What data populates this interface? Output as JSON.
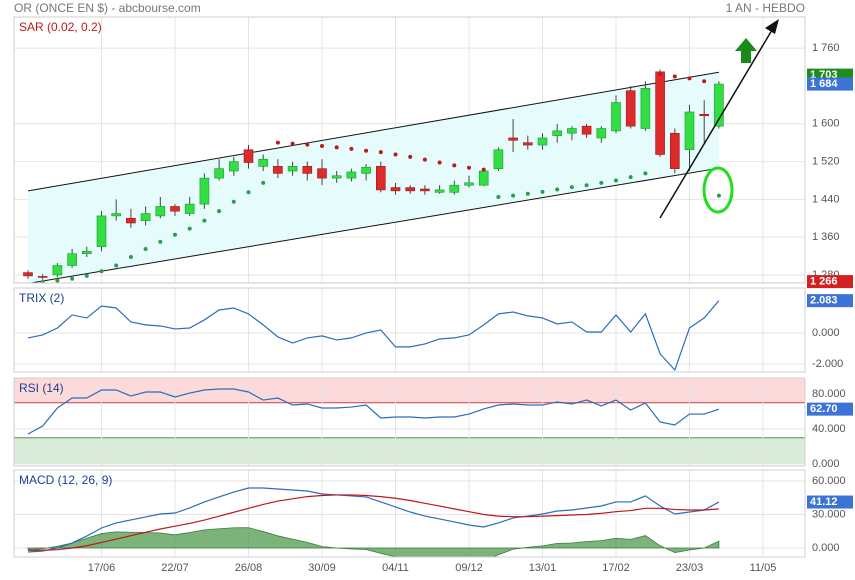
{
  "header": {
    "title": "OR (ONCE EN $) - abcbourse.com",
    "period": "1 AN - HEBDO"
  },
  "chart_data": [
    {
      "type": "candlestick",
      "label": "SAR (0.02, 0.2)",
      "label_color": "#c0171b",
      "categories": [
        null,
        null,
        null,
        null,
        null,
        "17/06",
        null,
        null,
        null,
        null,
        "22/07",
        null,
        null,
        null,
        null,
        "26/08",
        null,
        null,
        null,
        null,
        "30/09",
        null,
        null,
        null,
        null,
        "04/11",
        null,
        null,
        null,
        null,
        "09/12",
        null,
        null,
        null,
        null,
        "13/01",
        null,
        null,
        null,
        null,
        "17/02",
        null,
        null,
        null,
        null,
        "23/03",
        null,
        null,
        null,
        null,
        "11/05",
        null
      ],
      "open": [
        1285,
        1277,
        1280,
        1300,
        1325,
        1340,
        1405,
        1400,
        1395,
        1405,
        1425,
        1410,
        1430,
        1485,
        1500,
        1545,
        1510,
        1510,
        1500,
        1510,
        1505,
        1485,
        1485,
        1495,
        1510,
        1465,
        1465,
        1462,
        1455,
        1455,
        1470,
        1470,
        1505,
        1570,
        1560,
        1555,
        1575,
        1580,
        1595,
        1570,
        1585,
        1670,
        1590,
        1710,
        1580,
        1545,
        1620,
        1595,
        null,
        null,
        null,
        null
      ],
      "high": [
        1290,
        1282,
        1305,
        1335,
        1340,
        1415,
        1440,
        1420,
        1425,
        1445,
        1430,
        1445,
        1495,
        1525,
        1530,
        1555,
        1535,
        1525,
        1520,
        1520,
        1525,
        1500,
        1505,
        1515,
        1520,
        1475,
        1470,
        1470,
        1470,
        1480,
        1490,
        1505,
        1550,
        1610,
        1575,
        1580,
        1600,
        1595,
        1600,
        1595,
        1660,
        1680,
        1690,
        1715,
        1590,
        1640,
        1650,
        1690,
        null,
        null,
        null,
        null
      ],
      "low": [
        1272,
        1270,
        1275,
        1295,
        1318,
        1330,
        1395,
        1380,
        1385,
        1400,
        1405,
        1405,
        1420,
        1480,
        1490,
        1505,
        1500,
        1485,
        1490,
        1480,
        1470,
        1475,
        1478,
        1480,
        1455,
        1450,
        1452,
        1450,
        1452,
        1450,
        1465,
        1468,
        1500,
        1540,
        1545,
        1545,
        1560,
        1565,
        1570,
        1560,
        1580,
        1590,
        1585,
        1530,
        1495,
        1500,
        1560,
        1590,
        null,
        null,
        null,
        null
      ],
      "close": [
        1278,
        1275,
        1300,
        1325,
        1330,
        1405,
        1410,
        1390,
        1410,
        1425,
        1415,
        1430,
        1485,
        1505,
        1520,
        1518,
        1525,
        1495,
        1510,
        1495,
        1485,
        1490,
        1498,
        1508,
        1460,
        1458,
        1458,
        1458,
        1460,
        1470,
        1475,
        1500,
        1545,
        1565,
        1555,
        1570,
        1585,
        1590,
        1578,
        1590,
        1645,
        1595,
        1675,
        1535,
        1505,
        1625,
        1617,
        1684,
        null,
        null,
        null,
        null
      ],
      "up_color": "#33dd44",
      "down_color": "#dd2a2a",
      "sar": {
        "values": [
          null,
          1265,
          1268,
          1272,
          1278,
          1288,
          1300,
          1318,
          1335,
          1350,
          1365,
          1378,
          1395,
          1415,
          1435,
          1455,
          1475,
          1560,
          1558,
          1556,
          1553,
          1550,
          1547,
          1543,
          1540,
          1535,
          1530,
          1524,
          1518,
          1512,
          1507,
          1503,
          1445,
          1448,
          1452,
          1456,
          1461,
          1466,
          1470,
          1475,
          1480,
          1487,
          1495,
          1705,
          1700,
          1696,
          1690,
          1448,
          null,
          null,
          null,
          null
        ],
        "up_color": "#2a9d4a",
        "down_color": "#c0171b"
      },
      "channel": {
        "upper": [
          1458,
          1709
        ],
        "lower": [
          1262,
          1506
        ],
        "fill": "#e6fcfc",
        "color": "#111111"
      },
      "ylim": [
        1263,
        1826
      ],
      "yticks": [
        {
          "value": 1280,
          "label": "1 280"
        },
        {
          "value": 1360,
          "label": "1 360"
        },
        {
          "value": 1440,
          "label": "1 440"
        },
        {
          "value": 1520,
          "label": "1 520"
        },
        {
          "value": 1600,
          "label": "1 600"
        },
        {
          "value": 1760,
          "label": "1 760"
        }
      ],
      "tags": [
        {
          "value": 1703,
          "label": "1 703",
          "color": "#1e8c1e"
        },
        {
          "value": 1684,
          "label": "1 684",
          "color": "#3b73d6"
        },
        {
          "value": 1266,
          "label": "1 266",
          "color": "#d42020"
        }
      ]
    },
    {
      "type": "line",
      "label": "TRIX (2)",
      "label_color": "#1f3f8f",
      "series": [
        {
          "color": "#2a6ebb",
          "values": [
            -0.32,
            -0.13,
            0.32,
            1.16,
            0.97,
            1.74,
            1.61,
            0.71,
            0.52,
            0.45,
            0.26,
            0.32,
            0.84,
            1.48,
            1.61,
            1.23,
            0.52,
            -0.26,
            -0.65,
            -0.32,
            -0.19,
            -0.45,
            -0.32,
            0,
            0.19,
            -0.9,
            -0.9,
            -0.71,
            -0.39,
            -0.32,
            -0.13,
            0.52,
            1.23,
            1.35,
            1.1,
            0.97,
            0.58,
            0.71,
            0.06,
            0.06,
            1.16,
            0.06,
            1.23,
            -1.35,
            -2.39,
            0.32,
            0.97,
            2.083,
            null,
            null,
            null,
            null
          ]
        }
      ],
      "ylim": [
        -2.52,
        2.9
      ],
      "yticks": [
        {
          "value": 0,
          "label": "0.000"
        },
        {
          "value": -2,
          "label": "-2.000"
        }
      ],
      "tags": [
        {
          "value": 2.083,
          "color": "#3b73d6"
        }
      ]
    },
    {
      "type": "line",
      "label": "RSI (14)",
      "label_color": "#1f3f8f",
      "bands": [
        {
          "from": 70,
          "to": 100,
          "color": "#fdd9d9",
          "edge": "#d04040"
        },
        {
          "from": 0,
          "to": 30,
          "color": "#d8ecd8",
          "edge": "#5a8a5a"
        }
      ],
      "series": [
        {
          "color": "#2a6ebb",
          "values": [
            34.3,
            43.4,
            64,
            75.4,
            75.4,
            84.6,
            84.6,
            77.7,
            82.3,
            82.3,
            76.6,
            81.1,
            84.6,
            85.7,
            85.7,
            82.3,
            73.1,
            75.4,
            67.4,
            68.6,
            64,
            64,
            65.1,
            67.4,
            52.6,
            53.7,
            53.7,
            52.6,
            53.7,
            53.7,
            57.1,
            62.9,
            67.4,
            68.6,
            67.4,
            67.4,
            70.9,
            68.6,
            73.1,
            66.3,
            73.1,
            61.7,
            69.7,
            48,
            44.6,
            57.1,
            57.1,
            62.7,
            null,
            null,
            null,
            null
          ]
        }
      ],
      "ylim": [
        -2.3,
        98.3
      ],
      "yticks": [
        {
          "value": 80,
          "label": "80.000"
        },
        {
          "value": 40,
          "label": "40.000"
        },
        {
          "value": 0,
          "label": "0.000"
        }
      ],
      "tags": [
        {
          "value": 62.7,
          "label": "62.70",
          "color": "#3b73d6"
        }
      ]
    },
    {
      "type": "line",
      "label": "MACD (12, 26, 9)",
      "label_color": "#1f3f8f",
      "series": [
        {
          "style": "area",
          "color": "#4f9a4f",
          "values": [
            -1.6,
            -0.7,
            1.5,
            4.5,
            8.7,
            12.9,
            14.4,
            14.1,
            13.8,
            13.4,
            11.8,
            13.8,
            16.2,
            17.2,
            18.1,
            18.2,
            14.7,
            10.8,
            7.9,
            5,
            1.3,
            0,
            -0.9,
            -1.3,
            -4.8,
            -7.8,
            -10.3,
            -11.4,
            -11.5,
            -11.7,
            -11.9,
            -11.2,
            -6.1,
            -1.1,
            0.6,
            1.9,
            4.1,
            4.5,
            5.8,
            6.6,
            8.7,
            7.7,
            11.1,
            2.1,
            -4.1,
            -1.8,
            0,
            6.1,
            null,
            null,
            null,
            null
          ]
        },
        {
          "color": "#2a6ebb",
          "values": [
            -3.6,
            -2.7,
            0,
            4.5,
            10.7,
            17.9,
            22.4,
            25.1,
            27.8,
            30.4,
            31.3,
            35.8,
            41.2,
            45.7,
            50.1,
            53.7,
            53.7,
            52.8,
            51.9,
            51,
            48.3,
            47.5,
            46.6,
            45.7,
            41.2,
            36.7,
            32.2,
            28.6,
            26,
            23.3,
            20.6,
            18.8,
            22.4,
            26.9,
            28.6,
            30.4,
            33.1,
            34,
            35.8,
            37.6,
            41.2,
            41.2,
            46.6,
            37.6,
            30.4,
            32.2,
            34,
            41.12,
            null,
            null,
            null,
            null
          ]
        },
        {
          "color": "#c0171b",
          "values": [
            -2,
            -2,
            -1.5,
            0,
            2,
            5,
            8,
            11,
            14,
            17,
            19.5,
            22,
            25,
            28.5,
            32,
            35.5,
            39,
            42,
            44,
            46,
            47,
            47.5,
            47.5,
            47,
            46,
            44.5,
            42.5,
            40,
            37.5,
            35,
            32.5,
            30,
            28.5,
            28,
            28,
            28.5,
            29,
            29.5,
            30,
            31,
            32.5,
            33.5,
            35.5,
            35.5,
            34.5,
            34,
            34,
            35,
            null,
            null,
            null,
            null
          ]
        }
      ],
      "ylim": [
        -8.06,
        69.8
      ],
      "yticks": [
        {
          "value": 60,
          "label": "60.000"
        },
        {
          "value": 30,
          "label": "30.000"
        },
        {
          "value": 0,
          "label": "0.000"
        }
      ],
      "tags": [
        {
          "value": 41.12,
          "color": "#3b73d6"
        }
      ]
    }
  ]
}
